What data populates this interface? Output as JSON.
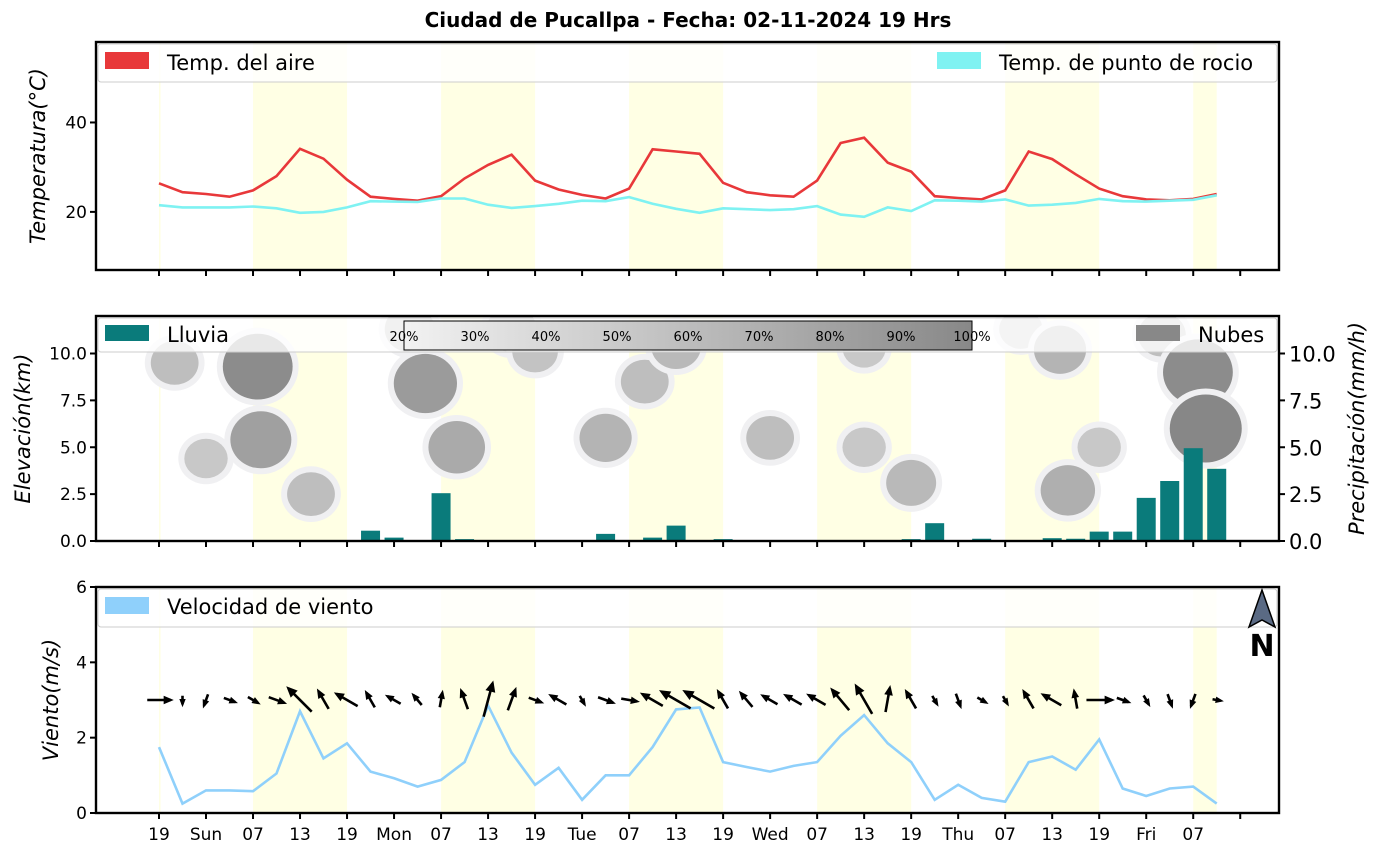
{
  "title": "Ciudad de Pucallpa   -   Fecha: 02-11-2024 19 Hrs",
  "colors": {
    "air": "#e8383a",
    "dew": "#7ff2f2",
    "rain": "#0a7b7b",
    "clouds": "#888888",
    "wind": "#8fd0fb",
    "day_shade": "#ffffe4"
  },
  "icons": {
    "north_arrow": "north-arrow-icon"
  },
  "x_ticks": {
    "positions": [
      0,
      3,
      6,
      9,
      12,
      15,
      18,
      21,
      24,
      27,
      30,
      33,
      36,
      39,
      42,
      45,
      48,
      51,
      54,
      57,
      60,
      63,
      66,
      69
    ],
    "labels": [
      "19",
      "Sun",
      "07",
      "13",
      "19",
      "Mon",
      "07",
      "13",
      "19",
      "Tue",
      "07",
      "13",
      "19",
      "Wed",
      "07",
      "13",
      "19",
      "Thu",
      "07",
      "13",
      "19",
      "Fri",
      "07",
      ""
    ]
  },
  "day_bands": [
    [
      0,
      0.1
    ],
    [
      6,
      12
    ],
    [
      18,
      24
    ],
    [
      30,
      36
    ],
    [
      42,
      48
    ],
    [
      54,
      60
    ],
    [
      66,
      67.5
    ]
  ],
  "chart_data": [
    {
      "type": "line",
      "ylabel": "Temperatura(°C)",
      "ylim": [
        7,
        58
      ],
      "yticks": [
        20,
        40
      ],
      "legend": [
        "Temp. del aire",
        "Temp. de punto de rocio"
      ],
      "x": [
        0,
        1.5,
        3,
        4.5,
        6,
        7.5,
        9,
        10.5,
        12,
        13.5,
        15,
        16.5,
        18,
        19.5,
        21,
        22.5,
        24,
        25.5,
        27,
        28.5,
        30,
        31.5,
        33,
        34.5,
        36,
        37.5,
        39,
        40.5,
        42,
        43.5,
        45,
        46.5,
        48,
        49.5,
        51,
        52.5,
        54,
        55.5,
        57,
        58.5,
        60,
        61.5,
        63,
        64.5,
        66,
        67.5
      ],
      "series": [
        {
          "name": "Temp. del aire",
          "values": [
            26.4,
            24.4,
            24.0,
            23.4,
            24.8,
            28.0,
            34.1,
            31.9,
            27.2,
            23.4,
            22.9,
            22.5,
            23.5,
            27.5,
            30.5,
            32.8,
            27.0,
            25.0,
            23.8,
            23.0,
            25.2,
            34.0,
            33.5,
            33.0,
            26.5,
            24.4,
            23.7,
            23.4,
            27.0,
            35.4,
            36.6,
            31.0,
            29.0,
            23.5,
            23.1,
            22.8,
            24.8,
            33.5,
            31.8,
            28.4,
            25.2,
            23.5,
            22.8,
            22.6,
            22.9,
            24.0
          ]
        },
        {
          "name": "Temp. de punto de rocio",
          "values": [
            21.5,
            21.0,
            21.0,
            21.0,
            21.2,
            20.8,
            19.8,
            20.0,
            21.0,
            22.4,
            22.3,
            22.2,
            23.0,
            23.0,
            21.6,
            20.9,
            21.3,
            21.8,
            22.5,
            22.4,
            23.3,
            21.8,
            20.7,
            19.8,
            20.8,
            20.6,
            20.4,
            20.6,
            21.3,
            19.4,
            18.9,
            21.0,
            20.2,
            22.6,
            22.5,
            22.3,
            22.8,
            21.4,
            21.6,
            22.0,
            22.9,
            22.4,
            22.3,
            22.5,
            22.7,
            23.7
          ]
        }
      ]
    },
    {
      "type": "bar",
      "ylabel": "Elevación(km)",
      "ylabel_right": "Precipitación(mm/h)",
      "ylim": [
        0,
        12
      ],
      "yticks": [
        0.0,
        2.5,
        5.0,
        7.5,
        10.0
      ],
      "legend": [
        "Lluvia",
        "Nubes"
      ],
      "colorbar_labels": [
        "20%",
        "30%",
        "40%",
        "50%",
        "60%",
        "70%",
        "80%",
        "90%",
        "100%"
      ],
      "x": [
        0,
        1.5,
        3,
        4.5,
        6,
        7.5,
        9,
        10.5,
        12,
        13.5,
        15,
        16.5,
        18,
        19.5,
        21,
        22.5,
        24,
        25.5,
        27,
        28.5,
        30,
        31.5,
        33,
        34.5,
        36,
        37.5,
        39,
        40.5,
        42,
        43.5,
        45,
        46.5,
        48,
        49.5,
        51,
        52.5,
        54,
        55.5,
        57,
        58.5,
        60,
        61.5,
        63,
        64.5,
        66,
        67.5
      ],
      "values": [
        0,
        0,
        0,
        0,
        0,
        0,
        0,
        0,
        0,
        0.55,
        0.18,
        0,
        2.55,
        0.1,
        0,
        0,
        0,
        0.05,
        0,
        0.38,
        0,
        0.18,
        0.82,
        0,
        0.1,
        0,
        0,
        0,
        0,
        0,
        0,
        0,
        0.1,
        0.95,
        0,
        0.12,
        0,
        0,
        0.15,
        0.12,
        0.5,
        0.5,
        2.3,
        3.2,
        4.95,
        3.85
      ],
      "clouds": [
        {
          "x": 1,
          "y": 9.5,
          "level": 0.45
        },
        {
          "x": 3,
          "y": 4.4,
          "level": 0.35
        },
        {
          "x": 6.3,
          "y": 9.3,
          "level": 0.95
        },
        {
          "x": 6.5,
          "y": 5.4,
          "level": 0.75
        },
        {
          "x": 9.7,
          "y": 2.5,
          "level": 0.45
        },
        {
          "x": 16,
          "y": 11.3,
          "level": 0.5
        },
        {
          "x": 17,
          "y": 8.4,
          "level": 0.8
        },
        {
          "x": 19,
          "y": 5.0,
          "level": 0.65
        },
        {
          "x": 22.5,
          "y": 11.3,
          "level": 0.5
        },
        {
          "x": 24,
          "y": 10.1,
          "level": 0.4
        },
        {
          "x": 28.5,
          "y": 5.5,
          "level": 0.55
        },
        {
          "x": 31,
          "y": 8.5,
          "level": 0.45
        },
        {
          "x": 33,
          "y": 10.4,
          "level": 0.5
        },
        {
          "x": 39,
          "y": 5.5,
          "level": 0.45
        },
        {
          "x": 45,
          "y": 10.3,
          "level": 0.35
        },
        {
          "x": 45,
          "y": 5.0,
          "level": 0.35
        },
        {
          "x": 48,
          "y": 3.1,
          "level": 0.5
        },
        {
          "x": 55,
          "y": 11.3,
          "level": 0.35
        },
        {
          "x": 57.5,
          "y": 10.2,
          "level": 0.55
        },
        {
          "x": 58,
          "y": 2.7,
          "level": 0.6
        },
        {
          "x": 60,
          "y": 5.0,
          "level": 0.35
        },
        {
          "x": 64,
          "y": 11.0,
          "level": 0.45
        },
        {
          "x": 66.3,
          "y": 9.0,
          "level": 0.95
        },
        {
          "x": 66.8,
          "y": 6.0,
          "level": 1.0
        }
      ]
    },
    {
      "type": "line",
      "ylabel": "Viento(m/s)",
      "ylim": [
        0,
        6
      ],
      "yticks": [
        0,
        2,
        4,
        6
      ],
      "legend": [
        "Velocidad de viento"
      ],
      "x": [
        0,
        1.5,
        3,
        4.5,
        6,
        7.5,
        9,
        10.5,
        12,
        13.5,
        15,
        16.5,
        18,
        19.5,
        21,
        22.5,
        24,
        25.5,
        27,
        28.5,
        30,
        31.5,
        33,
        34.5,
        36,
        37.5,
        39,
        40.5,
        42,
        43.5,
        45,
        46.5,
        48,
        49.5,
        51,
        52.5,
        54,
        55.5,
        57,
        58.5,
        60,
        61.5,
        63,
        64.5,
        66,
        67.5
      ],
      "series": [
        {
          "name": "Velocidad de viento",
          "values": [
            1.75,
            0.25,
            0.6,
            0.6,
            0.58,
            1.05,
            2.7,
            1.45,
            1.85,
            1.1,
            0.92,
            0.7,
            0.88,
            1.35,
            2.85,
            1.6,
            0.75,
            1.2,
            0.35,
            1.0,
            1.0,
            1.75,
            2.75,
            2.8,
            1.35,
            1.22,
            1.1,
            1.25,
            1.35,
            2.05,
            2.6,
            1.85,
            1.35,
            0.35,
            0.75,
            0.4,
            0.3,
            1.35,
            1.5,
            1.15,
            1.95,
            0.65,
            0.45,
            0.65,
            0.7,
            0.25
          ]
        }
      ],
      "wind_direction_deg": [
        90,
        180,
        200,
        110,
        120,
        110,
        315,
        330,
        300,
        330,
        300,
        320,
        10,
        340,
        15,
        20,
        110,
        300,
        150,
        110,
        100,
        300,
        300,
        300,
        330,
        320,
        300,
        300,
        300,
        320,
        330,
        10,
        330,
        150,
        160,
        120,
        150,
        330,
        300,
        350,
        90,
        110,
        150,
        160,
        200,
        100
      ]
    }
  ]
}
